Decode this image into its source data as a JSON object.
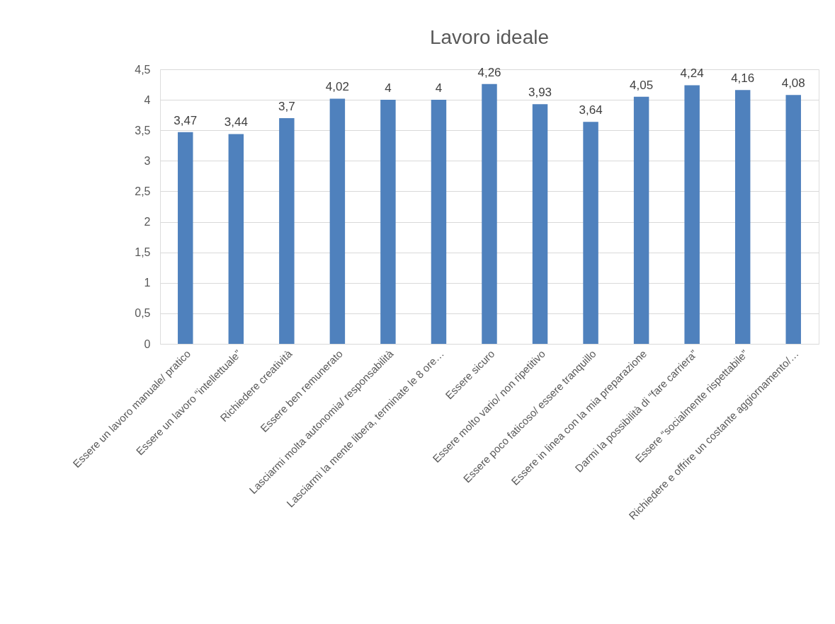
{
  "chart_data": {
    "type": "bar",
    "title": "Lavoro ideale",
    "categories": [
      "Essere un lavoro manuale/ pratico",
      "Essere un lavoro “intellettuale”",
      "Richiedere creatività",
      "Essere ben remunerato",
      "Lasciarmi molta autonomia/ responsabilità",
      "Lasciarmi la mente libera, terminate le 8 ore…",
      "Essere sicuro",
      "Essere molto vario/ non ripetitivo",
      "Essere poco faticoso/ essere tranquillo",
      "Essere in linea con la mia preparazione",
      "Darmi la possibilità di “fare carriera”",
      "Essere “socialmente rispettabile”",
      "Richiedere e offrire un costante aggiornamento/…"
    ],
    "values": [
      3.47,
      3.44,
      3.7,
      4.02,
      4,
      4,
      4.26,
      3.93,
      3.64,
      4.05,
      4.24,
      4.16,
      4.08
    ],
    "value_labels": [
      "3,47",
      "3,44",
      "3,7",
      "4,02",
      "4",
      "4",
      "4,26",
      "3,93",
      "3,64",
      "4,05",
      "4,24",
      "4,16",
      "4,08"
    ],
    "color": "#4f81bd",
    "ylim": [
      0,
      4.5
    ],
    "yticks": [
      0,
      {
        "value": 0.5,
        "label": "0,5"
      },
      1,
      {
        "value": 1.5,
        "label": "1,5"
      },
      2,
      {
        "value": 2.5,
        "label": "2,5"
      },
      3,
      {
        "value": 3.5,
        "label": "3,5"
      },
      4,
      {
        "value": 4.5,
        "label": "4,5"
      }
    ],
    "grid": "y"
  }
}
